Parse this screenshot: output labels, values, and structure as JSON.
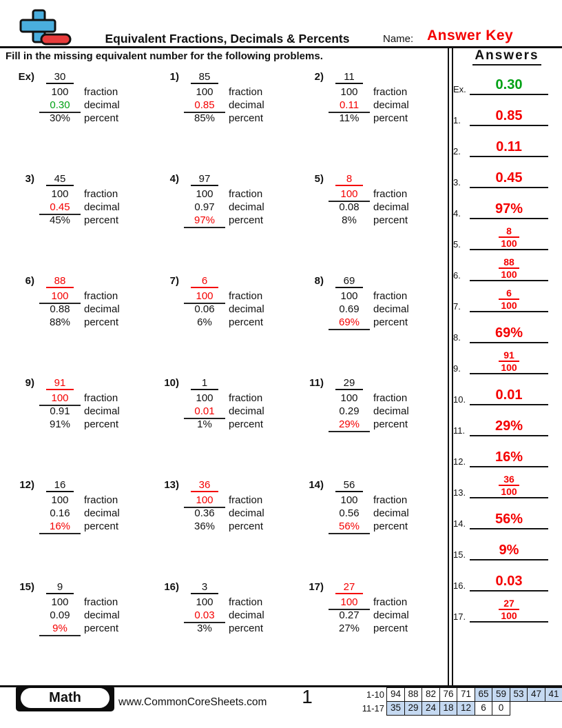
{
  "header": {
    "title": "Equivalent Fractions, Decimals & Percents",
    "name_label": "Name:",
    "answer_key": "Answer Key",
    "instruction": "Fill in the missing equivalent number for the following problems."
  },
  "worksheet": {
    "row_labels": [
      "fraction",
      "decimal",
      "percent"
    ],
    "problems": [
      {
        "label": "Ex)",
        "numerator": "30",
        "denominator": "100",
        "decimal": "0.30",
        "percent": "30%",
        "answer_slot": "decimal",
        "answer_color": "green"
      },
      {
        "label": "1)",
        "numerator": "85",
        "denominator": "100",
        "decimal": "0.85",
        "percent": "85%",
        "answer_slot": "decimal",
        "answer_color": "red"
      },
      {
        "label": "2)",
        "numerator": "11",
        "denominator": "100",
        "decimal": "0.11",
        "percent": "11%",
        "answer_slot": "decimal",
        "answer_color": "red"
      },
      {
        "label": "3)",
        "numerator": "45",
        "denominator": "100",
        "decimal": "0.45",
        "percent": "45%",
        "answer_slot": "decimal",
        "answer_color": "red"
      },
      {
        "label": "4)",
        "numerator": "97",
        "denominator": "100",
        "decimal": "0.97",
        "percent": "97%",
        "answer_slot": "percent",
        "answer_color": "red"
      },
      {
        "label": "5)",
        "numerator": "8",
        "denominator": "100",
        "decimal": "0.08",
        "percent": "8%",
        "answer_slot": "fraction",
        "answer_color": "red"
      },
      {
        "label": "6)",
        "numerator": "88",
        "denominator": "100",
        "decimal": "0.88",
        "percent": "88%",
        "answer_slot": "fraction",
        "answer_color": "red"
      },
      {
        "label": "7)",
        "numerator": "6",
        "denominator": "100",
        "decimal": "0.06",
        "percent": "6%",
        "answer_slot": "fraction",
        "answer_color": "red"
      },
      {
        "label": "8)",
        "numerator": "69",
        "denominator": "100",
        "decimal": "0.69",
        "percent": "69%",
        "answer_slot": "percent",
        "answer_color": "red"
      },
      {
        "label": "9)",
        "numerator": "91",
        "denominator": "100",
        "decimal": "0.91",
        "percent": "91%",
        "answer_slot": "fraction",
        "answer_color": "red"
      },
      {
        "label": "10)",
        "numerator": "1",
        "denominator": "100",
        "decimal": "0.01",
        "percent": "1%",
        "answer_slot": "decimal",
        "answer_color": "red"
      },
      {
        "label": "11)",
        "numerator": "29",
        "denominator": "100",
        "decimal": "0.29",
        "percent": "29%",
        "answer_slot": "percent",
        "answer_color": "red"
      },
      {
        "label": "12)",
        "numerator": "16",
        "denominator": "100",
        "decimal": "0.16",
        "percent": "16%",
        "answer_slot": "percent",
        "answer_color": "red"
      },
      {
        "label": "13)",
        "numerator": "36",
        "denominator": "100",
        "decimal": "0.36",
        "percent": "36%",
        "answer_slot": "fraction",
        "answer_color": "red"
      },
      {
        "label": "14)",
        "numerator": "56",
        "denominator": "100",
        "decimal": "0.56",
        "percent": "56%",
        "answer_slot": "percent",
        "answer_color": "red"
      },
      {
        "label": "15)",
        "numerator": "9",
        "denominator": "100",
        "decimal": "0.09",
        "percent": "9%",
        "answer_slot": "percent",
        "answer_color": "red"
      },
      {
        "label": "16)",
        "numerator": "3",
        "denominator": "100",
        "decimal": "0.03",
        "percent": "3%",
        "answer_slot": "decimal",
        "answer_color": "red"
      },
      {
        "label": "17)",
        "numerator": "27",
        "denominator": "100",
        "decimal": "0.27",
        "percent": "27%",
        "answer_slot": "fraction",
        "answer_color": "red"
      }
    ]
  },
  "answers_panel": {
    "title": "Answers",
    "items": [
      {
        "label": "Ex.",
        "type": "text",
        "value": "0.30",
        "color": "green"
      },
      {
        "label": "1.",
        "type": "text",
        "value": "0.85",
        "color": "red"
      },
      {
        "label": "2.",
        "type": "text",
        "value": "0.11",
        "color": "red"
      },
      {
        "label": "3.",
        "type": "text",
        "value": "0.45",
        "color": "red"
      },
      {
        "label": "4.",
        "type": "text",
        "value": "97%",
        "color": "red"
      },
      {
        "label": "5.",
        "type": "fraction",
        "numerator": "8",
        "denominator": "100",
        "color": "red"
      },
      {
        "label": "6.",
        "type": "fraction",
        "numerator": "88",
        "denominator": "100",
        "color": "red"
      },
      {
        "label": "7.",
        "type": "fraction",
        "numerator": "6",
        "denominator": "100",
        "color": "red"
      },
      {
        "label": "8.",
        "type": "text",
        "value": "69%",
        "color": "red"
      },
      {
        "label": "9.",
        "type": "fraction",
        "numerator": "91",
        "denominator": "100",
        "color": "red"
      },
      {
        "label": "10.",
        "type": "text",
        "value": "0.01",
        "color": "red"
      },
      {
        "label": "11.",
        "type": "text",
        "value": "29%",
        "color": "red"
      },
      {
        "label": "12.",
        "type": "text",
        "value": "16%",
        "color": "red"
      },
      {
        "label": "13.",
        "type": "fraction",
        "numerator": "36",
        "denominator": "100",
        "color": "red"
      },
      {
        "label": "14.",
        "type": "text",
        "value": "56%",
        "color": "red"
      },
      {
        "label": "15.",
        "type": "text",
        "value": "9%",
        "color": "red"
      },
      {
        "label": "16.",
        "type": "text",
        "value": "0.03",
        "color": "red"
      },
      {
        "label": "17.",
        "type": "fraction",
        "numerator": "27",
        "denominator": "100",
        "color": "red"
      }
    ]
  },
  "footer": {
    "subject_badge": "Math",
    "website": "www.CommonCoreSheets.com",
    "page_number": "1",
    "score_table": [
      {
        "label": "1-10",
        "cells": [
          {
            "v": "94",
            "hl": false
          },
          {
            "v": "88",
            "hl": false
          },
          {
            "v": "82",
            "hl": false
          },
          {
            "v": "76",
            "hl": false
          },
          {
            "v": "71",
            "hl": false
          },
          {
            "v": "65",
            "hl": true
          },
          {
            "v": "59",
            "hl": true
          },
          {
            "v": "53",
            "hl": true
          },
          {
            "v": "47",
            "hl": true
          },
          {
            "v": "41",
            "hl": true
          }
        ]
      },
      {
        "label": "11-17",
        "cells": [
          {
            "v": "35",
            "hl": true
          },
          {
            "v": "29",
            "hl": true
          },
          {
            "v": "24",
            "hl": true
          },
          {
            "v": "18",
            "hl": true
          },
          {
            "v": "12",
            "hl": true
          },
          {
            "v": "6",
            "hl": false
          },
          {
            "v": "0",
            "hl": false
          }
        ]
      }
    ]
  },
  "colors": {
    "answer_red": "#f40000",
    "answer_green": "#00a114",
    "table_highlight": "#c5d9f1",
    "logo_blue": "#4aaede",
    "logo_red": "#e83c3c"
  }
}
